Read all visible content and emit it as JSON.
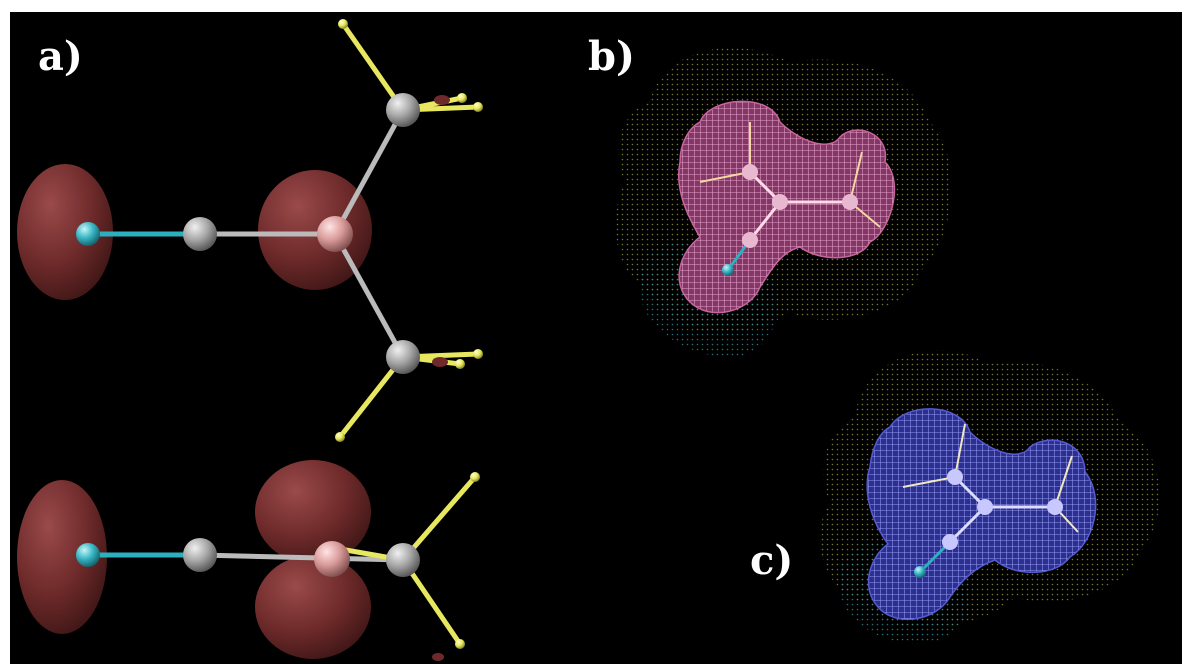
{
  "panels": {
    "a": {
      "label": "a)"
    },
    "b": {
      "label": "b)"
    },
    "c": {
      "label": "c)"
    }
  },
  "colors": {
    "background": "#000000",
    "orbital_lobe": "#6e2a2a",
    "nitrogen_atom": "#36b6c4",
    "carbon_atom": "#a8a8a8",
    "central_atom": "#d99a9a",
    "hydrogen_atom": "#e8e860",
    "surface_b": "#d46aa8",
    "surface_c": "#5a5fe0",
    "vdw_dots": "#8a8a3a",
    "cyan_dots": "#2f8f9a"
  },
  "icons": {
    "atom": "sphere-icon",
    "bond": "cylinder-bond"
  }
}
